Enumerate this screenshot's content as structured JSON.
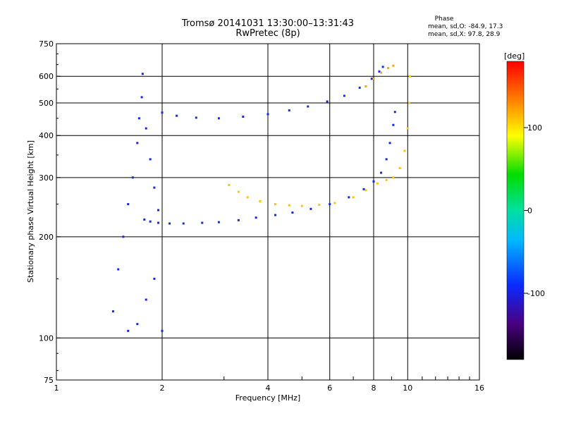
{
  "header": {
    "title_line1": "Tromsø 20141031 13:30:00–13:31:43",
    "title_line2": "RwPretec (8p)",
    "phase_title": "Phase",
    "phase_o": "mean, sd,O:  -84.9, 17.3",
    "phase_x": "mean, sd,X:  97.8, 28.9"
  },
  "chart_data": {
    "type": "scatter",
    "xlabel": "Frequency [MHz]",
    "ylabel": "Stationary phase Virtual Height [km]",
    "xscale": "log2",
    "yscale": "log",
    "xlim": [
      1,
      16
    ],
    "ylim": [
      75,
      750
    ],
    "x_ticks": [
      1,
      2,
      4,
      6,
      8,
      10,
      16
    ],
    "x_tick_labels": [
      "1",
      "2",
      "4",
      "6",
      "8",
      "10",
      "16"
    ],
    "x_gridlines": [
      2,
      4,
      6,
      8,
      10
    ],
    "y_ticks": [
      75,
      100,
      200,
      300,
      400,
      500,
      600,
      750
    ],
    "y_tick_labels": [
      "75",
      "100",
      "200",
      "300",
      "400",
      "500",
      "600",
      "750"
    ],
    "y_gridlines": [
      100,
      200,
      300,
      400,
      500,
      600
    ],
    "grid": true,
    "colorbar": {
      "label": "[deg]",
      "range": [
        -180,
        180
      ],
      "ticks": [
        100,
        0,
        -100
      ],
      "tick_labels": [
        "100",
        "0",
        "-100"
      ],
      "colormap": "rainbow"
    },
    "traces": [
      {
        "name": "",
        "phase_deg": -95,
        "points": [
          [
            1.78,
            225
          ],
          [
            1.85,
            222
          ],
          [
            1.95,
            220
          ],
          [
            2.1,
            219
          ],
          [
            2.3,
            219
          ],
          [
            2.6,
            220
          ],
          [
            2.9,
            221
          ],
          [
            3.3,
            224
          ],
          [
            3.7,
            228
          ],
          [
            4.2,
            232
          ],
          [
            4.7,
            236
          ],
          [
            5.3,
            242
          ],
          [
            6.0,
            250
          ],
          [
            6.8,
            262
          ],
          [
            7.5,
            277
          ],
          [
            8.0,
            292
          ],
          [
            8.4,
            310
          ],
          [
            8.7,
            340
          ],
          [
            8.9,
            380
          ],
          [
            9.1,
            430
          ],
          [
            9.2,
            470
          ]
        ]
      },
      {
        "name": "",
        "phase_deg": 110,
        "points": [
          [
            3.1,
            285
          ],
          [
            3.3,
            272
          ],
          [
            3.5,
            262
          ],
          [
            3.8,
            255
          ],
          [
            4.2,
            250
          ],
          [
            4.6,
            248
          ],
          [
            5.0,
            247
          ],
          [
            5.6,
            249
          ],
          [
            6.2,
            252
          ],
          [
            7.0,
            262
          ],
          [
            7.6,
            275
          ],
          [
            8.2,
            288
          ],
          [
            8.7,
            295
          ],
          [
            9.1,
            300
          ],
          [
            9.5,
            320
          ],
          [
            9.8,
            360
          ],
          [
            10.0,
            420
          ],
          [
            10.1,
            500
          ],
          [
            10.15,
            600
          ]
        ]
      },
      {
        "name": "",
        "phase_deg": -90,
        "points": [
          [
            2.0,
            468
          ],
          [
            2.2,
            458
          ],
          [
            2.5,
            452
          ],
          [
            2.9,
            450
          ],
          [
            3.4,
            455
          ],
          [
            4.0,
            463
          ],
          [
            4.6,
            475
          ],
          [
            5.2,
            488
          ],
          [
            5.9,
            505
          ],
          [
            6.6,
            525
          ],
          [
            7.3,
            555
          ],
          [
            7.9,
            590
          ],
          [
            8.3,
            620
          ],
          [
            8.5,
            640
          ]
        ]
      },
      {
        "name": "",
        "phase_deg": 120,
        "points": [
          [
            7.6,
            560
          ],
          [
            8.0,
            590
          ],
          [
            8.4,
            615
          ],
          [
            8.8,
            635
          ],
          [
            9.1,
            645
          ]
        ]
      },
      {
        "name": "",
        "phase_deg": -95,
        "points": [
          [
            1.45,
            120
          ],
          [
            1.5,
            160
          ],
          [
            1.55,
            200
          ],
          [
            1.6,
            250
          ],
          [
            1.65,
            300
          ],
          [
            1.7,
            380
          ],
          [
            1.72,
            450
          ],
          [
            1.75,
            520
          ],
          [
            1.76,
            610
          ],
          [
            1.8,
            420
          ],
          [
            1.85,
            340
          ],
          [
            1.9,
            280
          ],
          [
            1.95,
            240
          ],
          [
            1.6,
            105
          ],
          [
            1.7,
            110
          ],
          [
            1.8,
            130
          ],
          [
            1.9,
            150
          ],
          [
            2.0,
            105
          ]
        ]
      }
    ]
  }
}
